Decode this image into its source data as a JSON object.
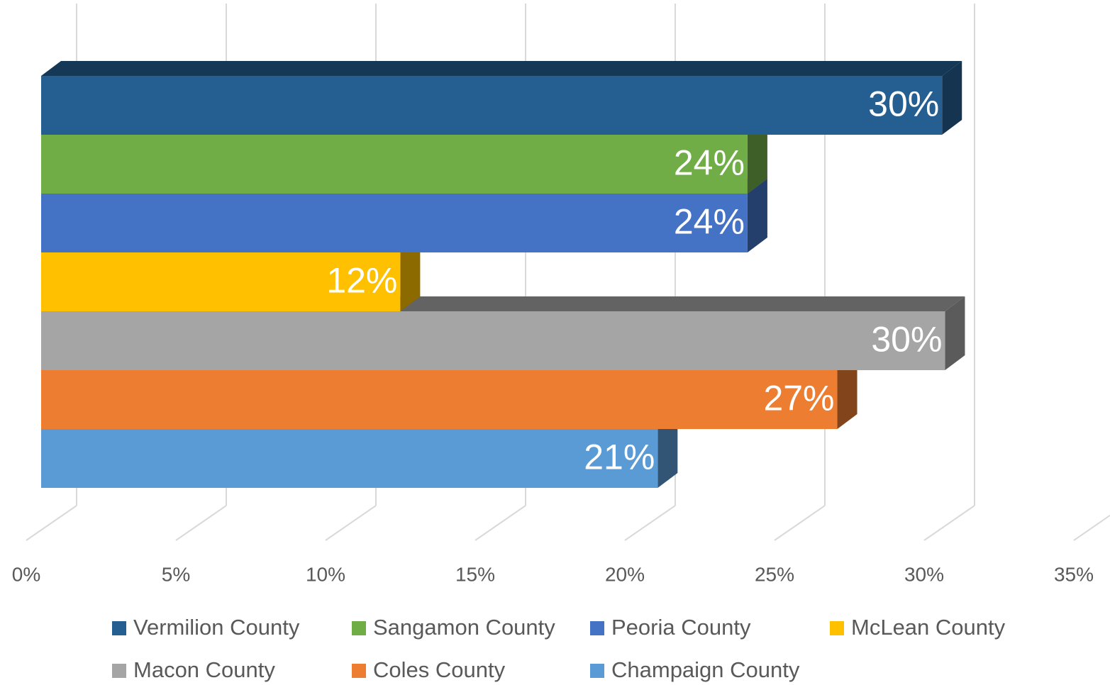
{
  "chart_data": {
    "type": "bar",
    "series": [
      {
        "name": "Vermilion County",
        "color": "#255e91",
        "values": [
          30.1
        ],
        "value_labels": [
          "30%"
        ]
      },
      {
        "name": "Sangamon County",
        "color": "#70ad47",
        "values": [
          23.6
        ],
        "value_labels": [
          "24%"
        ]
      },
      {
        "name": "Peoria County",
        "color": "#4472c4",
        "values": [
          23.6
        ],
        "value_labels": [
          "24%"
        ]
      },
      {
        "name": "McLean County",
        "color": "#ffc000",
        "values": [
          12.0
        ],
        "value_labels": [
          "12%"
        ]
      },
      {
        "name": "Macon County",
        "color": "#a5a5a5",
        "values": [
          30.2
        ],
        "value_labels": [
          "30%"
        ]
      },
      {
        "name": "Coles County",
        "color": "#ed7d31",
        "values": [
          26.6
        ],
        "value_labels": [
          "27%"
        ]
      },
      {
        "name": "Champaign County",
        "color": "#5b9bd5",
        "values": [
          20.6
        ],
        "value_labels": [
          "21%"
        ]
      }
    ],
    "xlim": [
      0,
      35
    ],
    "xticks": [
      {
        "value": 0,
        "label": "0%"
      },
      {
        "value": 5,
        "label": "5%"
      },
      {
        "value": 10,
        "label": "10%"
      },
      {
        "value": 15,
        "label": "15%"
      },
      {
        "value": 20,
        "label": "20%"
      },
      {
        "value": 25,
        "label": "25%"
      },
      {
        "value": 30,
        "label": "30%"
      },
      {
        "value": 35,
        "label": "35%"
      }
    ],
    "grid": true
  }
}
